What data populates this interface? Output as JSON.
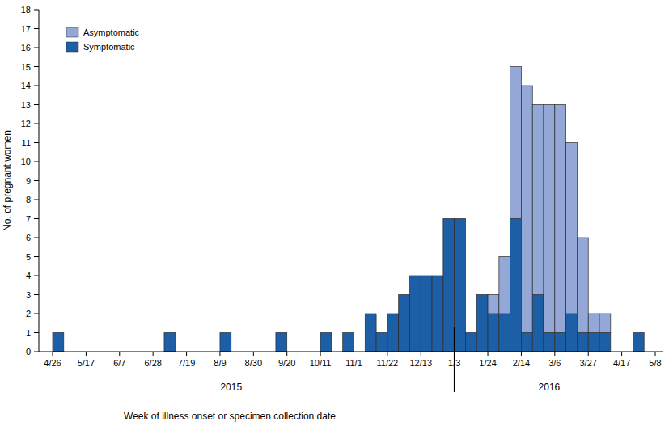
{
  "chart_data": {
    "type": "bar",
    "stacked": true,
    "x_label": "Week of illness onset or specimen collection date",
    "y_label": "No. of pregnant women",
    "x": [
      0,
      1,
      2,
      3,
      4,
      5,
      6,
      7,
      8,
      9,
      10,
      11,
      12,
      13,
      14,
      15,
      16,
      17,
      18,
      19,
      20,
      21,
      22,
      23,
      24,
      25,
      26,
      27,
      28,
      29,
      30,
      31,
      32,
      33,
      34,
      35,
      36,
      37,
      38,
      39,
      40,
      41,
      42,
      43,
      44,
      45,
      46,
      47,
      48,
      49,
      50,
      51,
      52,
      53
    ],
    "xlim": [
      0,
      54
    ],
    "xticks": [
      {
        "value": 0,
        "label": "4/26"
      },
      {
        "value": 3,
        "label": "5/17"
      },
      {
        "value": 6,
        "label": "6/7"
      },
      {
        "value": 9,
        "label": "6/28"
      },
      {
        "value": 12,
        "label": "7/19"
      },
      {
        "value": 15,
        "label": "8/9"
      },
      {
        "value": 18,
        "label": "8/30"
      },
      {
        "value": 21,
        "label": "9/20"
      },
      {
        "value": 24,
        "label": "10/11"
      },
      {
        "value": 27,
        "label": "11/1"
      },
      {
        "value": 30,
        "label": "11/22"
      },
      {
        "value": 33,
        "label": "12/13"
      },
      {
        "value": 36,
        "label": "1/3"
      },
      {
        "value": 39,
        "label": "1/24"
      },
      {
        "value": 42,
        "label": "2/14"
      },
      {
        "value": 45,
        "label": "3/6"
      },
      {
        "value": 48,
        "label": "3/27"
      },
      {
        "value": 51,
        "label": "4/17"
      },
      {
        "value": 54,
        "label": "5/8"
      }
    ],
    "ylim": [
      0,
      18
    ],
    "yticks": [
      0,
      1,
      2,
      3,
      4,
      5,
      6,
      7,
      8,
      9,
      10,
      11,
      12,
      13,
      14,
      15,
      16,
      17,
      18
    ],
    "legend": "upper left",
    "series": [
      {
        "name": "Asymptomatic",
        "color": "#93a8d7",
        "values": [
          0,
          0,
          0,
          0,
          0,
          0,
          0,
          0,
          0,
          0,
          0,
          0,
          0,
          0,
          0,
          0,
          0,
          0,
          0,
          0,
          0,
          0,
          0,
          0,
          0,
          0,
          0,
          0,
          0,
          0,
          0,
          0,
          0,
          0,
          0,
          0,
          0,
          0,
          0,
          1,
          3,
          8,
          13,
          10,
          12,
          12,
          9,
          5,
          1,
          1,
          0,
          0,
          0,
          0
        ]
      },
      {
        "name": "Symptomatic",
        "color": "#1d5fa6",
        "values": [
          1,
          0,
          0,
          0,
          0,
          0,
          0,
          0,
          0,
          0,
          1,
          0,
          0,
          0,
          0,
          1,
          0,
          0,
          0,
          0,
          1,
          0,
          0,
          0,
          1,
          0,
          1,
          0,
          2,
          1,
          2,
          3,
          4,
          4,
          4,
          7,
          7,
          1,
          3,
          2,
          2,
          7,
          1,
          3,
          1,
          1,
          2,
          1,
          1,
          1,
          0,
          0,
          1,
          0
        ]
      }
    ],
    "annotations": [
      {
        "text": "2015",
        "x": 16
      },
      {
        "text": "2016",
        "x": 44.5
      }
    ],
    "year_boundary": 36
  }
}
